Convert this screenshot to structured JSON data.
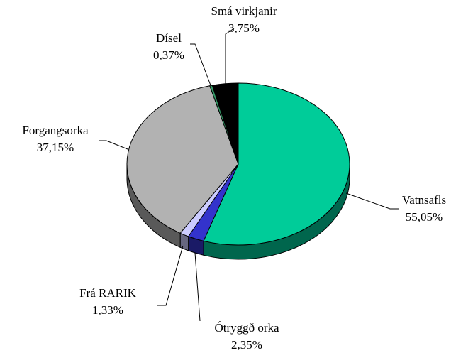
{
  "chart_data": {
    "type": "pie",
    "categories": [
      "Vatnsafls",
      "Ótryggð orka",
      "Frá RARIK",
      "Forgangsorka",
      "Dísel",
      "Smá virkjanir"
    ],
    "values": [
      55.05,
      2.35,
      1.33,
      37.15,
      0.37,
      3.75
    ],
    "value_labels": [
      "55,05%",
      "2,35%",
      "1,33%",
      "37,15%",
      "0,37%",
      "3,75%"
    ],
    "colors": [
      "#00cc99",
      "#3333cc",
      "#ccccff",
      "#b2b2b2",
      "#339966",
      "#000000"
    ]
  }
}
